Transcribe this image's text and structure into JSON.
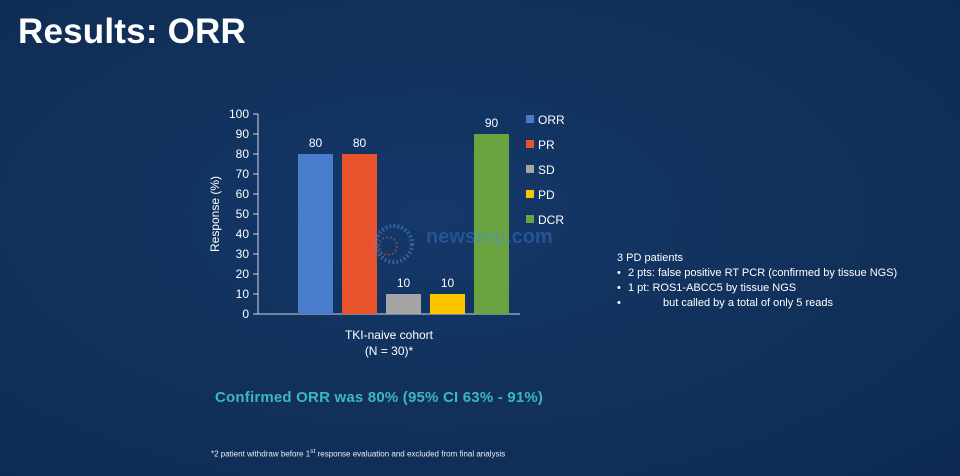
{
  "slide_title": "Results: ORR",
  "chart_data": {
    "type": "bar",
    "categories": [
      "ORR",
      "PR",
      "SD",
      "PD",
      "DCR"
    ],
    "values": [
      80,
      80,
      10,
      10,
      90
    ],
    "colors": [
      "#4a7ccc",
      "#e8532b",
      "#a5a5a5",
      "#fdc400",
      "#69a441"
    ],
    "ylabel": "Response (%)",
    "ylim": [
      0,
      100
    ],
    "yticks": [
      0,
      10,
      20,
      30,
      40,
      50,
      60,
      70,
      80,
      90,
      100
    ],
    "xlabel_line1": "TKI-naive  cohort",
    "xlabel_line2": "(N = 30)*",
    "legend": [
      "ORR",
      "PR",
      "SD",
      "PD",
      "DCR"
    ],
    "legend_position": "right",
    "grid": false
  },
  "notes": {
    "heading": "3 PD patients",
    "bullet1": "2 pts: false positive RT PCR (confirmed by tissue NGS)",
    "bullet2_line1": "1 pt: ROS1-ABCC5 by tissue NGS",
    "bullet2_line2": "but called by a total of only 5 reads"
  },
  "confirmed_text": "Confirmed ORR was 80% (95% CI 63% - 91%)",
  "footnote": {
    "prefix": "*2 patient withdraw before 1",
    "sup": "st",
    "suffix": " response evaluation and excluded from final analysis"
  },
  "watermark": "newsmp.com"
}
